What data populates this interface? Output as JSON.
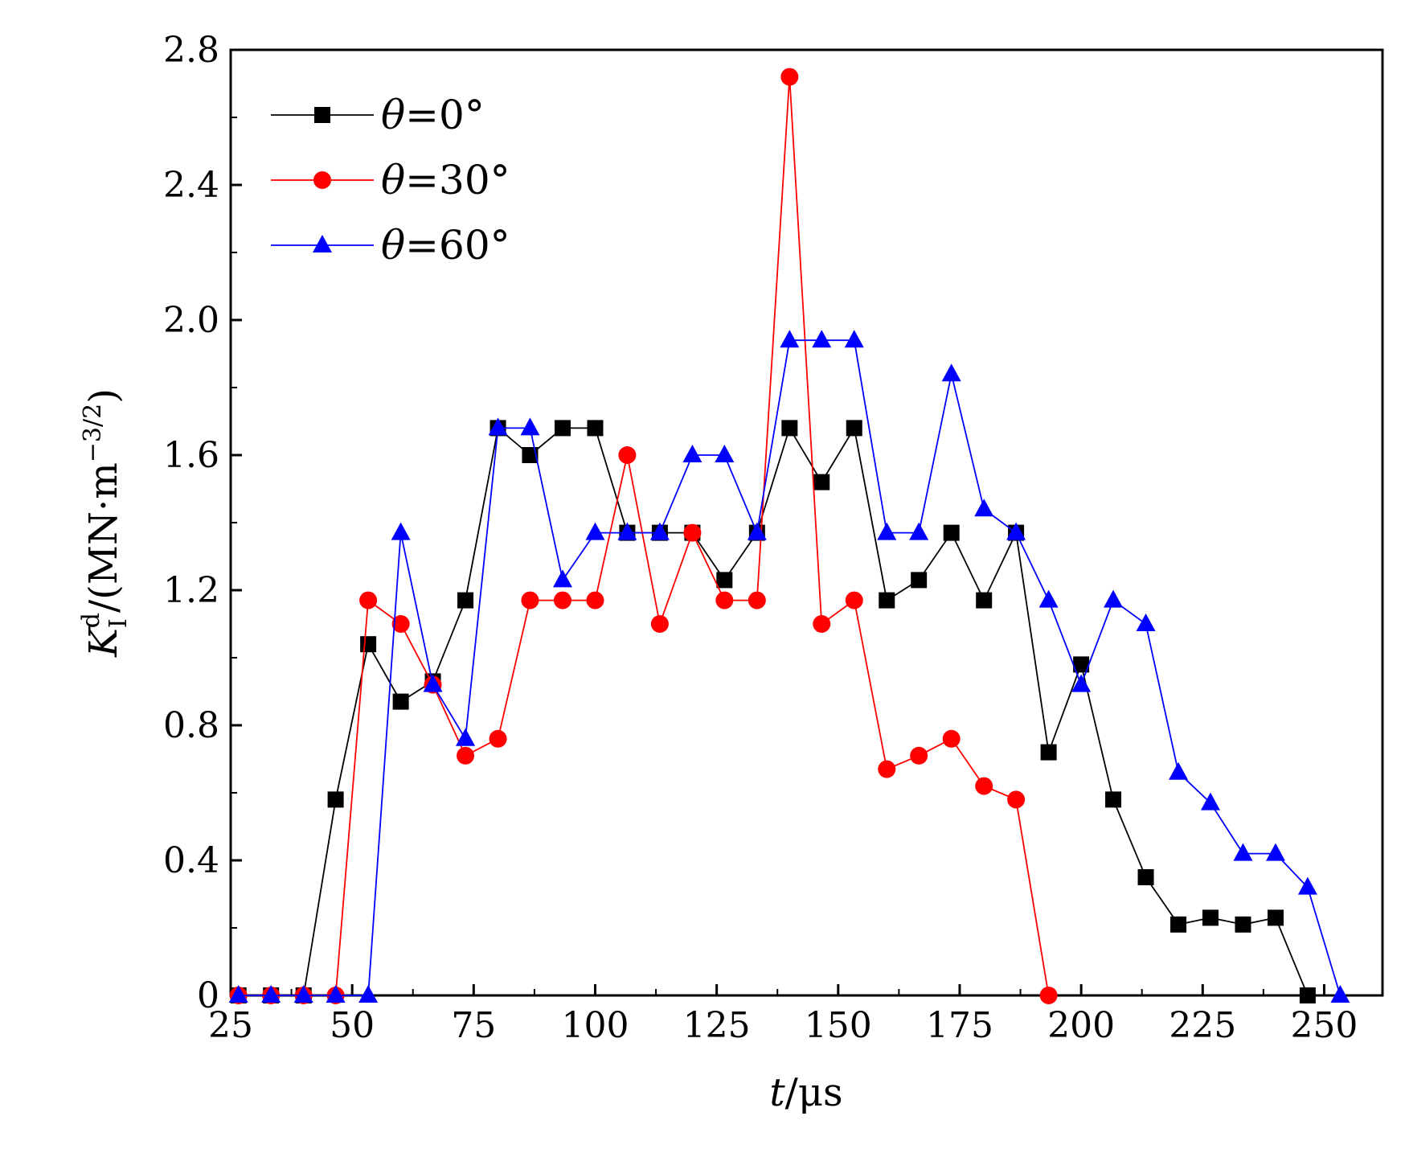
{
  "chart_data": {
    "type": "line",
    "title": "",
    "xlabel": {
      "var": "t",
      "rest": "/μs"
    },
    "ylabel": {
      "var": "K",
      "sub": "I",
      "sup": "d",
      "rest": "/(MN·m",
      "unit_sup": "−3/2",
      "close": ")"
    },
    "xlim": [
      25,
      262
    ],
    "ylim": [
      0,
      2.8
    ],
    "xticks": [
      25,
      50,
      75,
      100,
      125,
      150,
      175,
      200,
      225,
      250
    ],
    "xtick_labels": [
      "25",
      "50",
      "75",
      "100",
      "125",
      "150",
      "175",
      "200",
      "225",
      "250"
    ],
    "yticks": [
      0,
      0.4,
      0.8,
      1.2,
      1.6,
      2.0,
      2.4,
      2.8
    ],
    "ytick_labels": [
      "0",
      "0.4",
      "0.8",
      "1.2",
      "1.6",
      "2.0",
      "2.4",
      "2.8"
    ],
    "grid": false,
    "legend_position": "top-left",
    "series": [
      {
        "name": "θ=0°",
        "legend_var": "θ",
        "legend_rest": "=0°",
        "color": "#000000",
        "marker": "square",
        "x": [
          26.6,
          33.3,
          40,
          46.6,
          53.3,
          60,
          66.6,
          73.3,
          80,
          86.6,
          93.3,
          100,
          106.6,
          113.3,
          120,
          126.6,
          133.3,
          140,
          146.6,
          153.3,
          160,
          166.6,
          173.3,
          180,
          186.6,
          193.3,
          200,
          206.6,
          213.3,
          220,
          226.6,
          233.3,
          240,
          246.6
        ],
        "y": [
          0,
          0,
          0,
          0.58,
          1.04,
          0.87,
          0.93,
          1.17,
          1.68,
          1.6,
          1.68,
          1.68,
          1.37,
          1.37,
          1.37,
          1.23,
          1.37,
          1.68,
          1.52,
          1.68,
          1.17,
          1.23,
          1.37,
          1.17,
          1.37,
          0.72,
          0.98,
          0.58,
          0.35,
          0.21,
          0.23,
          0.21,
          0.23,
          0
        ]
      },
      {
        "name": "θ=30°",
        "legend_var": "θ",
        "legend_rest": "=30°",
        "color": "#ff0000",
        "marker": "circle",
        "x": [
          26.6,
          33.3,
          40,
          46.6,
          53.3,
          60,
          66.6,
          73.3,
          80,
          86.6,
          93.3,
          100,
          106.6,
          113.3,
          120,
          126.6,
          133.3,
          140,
          146.6,
          153.3,
          160,
          166.6,
          173.3,
          180,
          186.6,
          193.3
        ],
        "y": [
          0,
          0,
          0,
          0,
          1.17,
          1.1,
          0.92,
          0.71,
          0.76,
          1.17,
          1.17,
          1.17,
          1.6,
          1.1,
          1.37,
          1.17,
          1.17,
          2.72,
          1.1,
          1.17,
          0.67,
          0.71,
          0.76,
          0.62,
          0.58,
          0
        ]
      },
      {
        "name": "θ=60°",
        "legend_var": "θ",
        "legend_rest": "=60°",
        "color": "#0000ff",
        "marker": "triangle",
        "x": [
          26.6,
          33.3,
          40,
          46.6,
          53.3,
          60,
          66.6,
          73.3,
          80,
          86.6,
          93.3,
          100,
          106.6,
          113.3,
          120,
          126.6,
          133.3,
          140,
          146.6,
          153.3,
          160,
          166.6,
          173.3,
          180,
          186.6,
          193.3,
          200,
          206.6,
          213.3,
          220,
          226.6,
          233.3,
          240,
          246.6,
          253.3
        ],
        "y": [
          0,
          0,
          0,
          0,
          0,
          1.37,
          0.92,
          0.76,
          1.68,
          1.68,
          1.23,
          1.37,
          1.37,
          1.37,
          1.6,
          1.6,
          1.37,
          1.94,
          1.94,
          1.94,
          1.37,
          1.37,
          1.84,
          1.44,
          1.37,
          1.17,
          0.92,
          1.17,
          1.1,
          0.66,
          0.57,
          0.42,
          0.42,
          0.32,
          0
        ]
      }
    ]
  }
}
